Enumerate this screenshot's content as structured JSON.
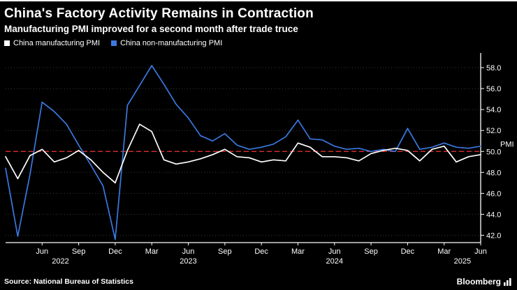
{
  "header": {
    "title": "China's Factory Activity Remains in Contraction",
    "subtitle": "Manufacturing PMI improved for a second month after trade truce"
  },
  "legend": [
    {
      "label": "China manufacturing PMI",
      "color": "#ffffff"
    },
    {
      "label": "China non-manufacturing PMI",
      "color": "#3b78e0"
    }
  ],
  "chart_data": {
    "type": "line",
    "title": "China's Factory Activity Remains in Contraction",
    "ylabel": "PMI",
    "ylim": [
      41.3,
      59.0
    ],
    "yticks": [
      42.0,
      44.0,
      46.0,
      48.0,
      50.0,
      52.0,
      54.0,
      56.0,
      58.0
    ],
    "reference_line": 50.0,
    "x": [
      "2022-03",
      "2022-04",
      "2022-05",
      "2022-06",
      "2022-07",
      "2022-08",
      "2022-09",
      "2022-10",
      "2022-11",
      "2022-12",
      "2023-01",
      "2023-02",
      "2023-03",
      "2023-04",
      "2023-05",
      "2023-06",
      "2023-07",
      "2023-08",
      "2023-09",
      "2023-10",
      "2023-11",
      "2023-12",
      "2024-01",
      "2024-02",
      "2024-03",
      "2024-04",
      "2024-05",
      "2024-06",
      "2024-07",
      "2024-08",
      "2024-09",
      "2024-10",
      "2024-11",
      "2024-12",
      "2025-01",
      "2025-02",
      "2025-03",
      "2025-04",
      "2025-05",
      "2025-06"
    ],
    "series": [
      {
        "name": "China manufacturing PMI",
        "color": "#ffffff",
        "values": [
          49.5,
          47.4,
          49.6,
          50.2,
          49.0,
          49.4,
          50.1,
          49.2,
          48.0,
          47.0,
          50.1,
          52.6,
          51.9,
          49.2,
          48.8,
          49.0,
          49.3,
          49.7,
          50.2,
          49.5,
          49.4,
          49.0,
          49.2,
          49.1,
          50.8,
          50.4,
          49.5,
          49.5,
          49.4,
          49.1,
          49.8,
          50.1,
          50.3,
          50.1,
          49.1,
          50.2,
          50.5,
          49.0,
          49.5,
          49.7
        ]
      },
      {
        "name": "China non-manufacturing PMI",
        "color": "#3b78e0",
        "values": [
          48.4,
          41.9,
          47.8,
          54.7,
          53.8,
          52.6,
          50.6,
          48.7,
          46.7,
          41.6,
          54.4,
          56.3,
          58.2,
          56.4,
          54.5,
          53.2,
          51.5,
          51.0,
          51.7,
          50.6,
          50.2,
          50.4,
          50.7,
          51.4,
          53.0,
          51.2,
          51.1,
          50.5,
          50.2,
          50.3,
          50.0,
          50.2,
          50.0,
          52.2,
          50.2,
          50.4,
          50.8,
          50.4,
          50.3,
          50.5
        ]
      }
    ],
    "xticks": [
      {
        "i": 3,
        "label": "Jun"
      },
      {
        "i": 6,
        "label": "Sep"
      },
      {
        "i": 9,
        "label": "Dec"
      },
      {
        "i": 12,
        "label": "Mar"
      },
      {
        "i": 15,
        "label": "Jun"
      },
      {
        "i": 18,
        "label": "Sep"
      },
      {
        "i": 21,
        "label": "Dec"
      },
      {
        "i": 24,
        "label": "Mar"
      },
      {
        "i": 27,
        "label": "Jun"
      },
      {
        "i": 30,
        "label": "Sep"
      },
      {
        "i": 33,
        "label": "Dec"
      },
      {
        "i": 36,
        "label": "Mar"
      },
      {
        "i": 39,
        "label": "Jun"
      }
    ],
    "years": [
      {
        "label": "2022",
        "i": 4.5
      },
      {
        "label": "2023",
        "i": 15
      },
      {
        "label": "2024",
        "i": 27
      },
      {
        "label": "2025",
        "i": 37.5
      }
    ],
    "colors": {
      "background": "#000000",
      "grid": "#3a3a3a",
      "axis": "#ffffff",
      "reference": "#cc2b2b"
    },
    "legend_position": "top-left",
    "grid": true
  },
  "footer": {
    "source": "Source: National Bureau of Statistics",
    "brand": "Bloomberg"
  }
}
